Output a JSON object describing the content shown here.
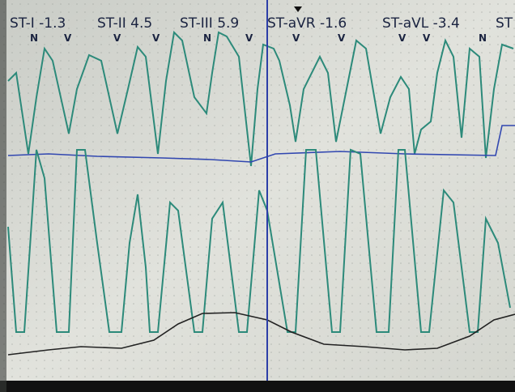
{
  "st_labels": [
    "ST-I -1.3",
    "ST-II 4.5",
    "ST-III 5.9",
    "ST-aVR -1.6",
    "ST-aVL -3.4",
    "ST"
  ],
  "beat_labels": [
    "N",
    "V",
    "V",
    "V",
    "N",
    "V",
    "V",
    "V",
    "V",
    "V",
    "N"
  ]
}
